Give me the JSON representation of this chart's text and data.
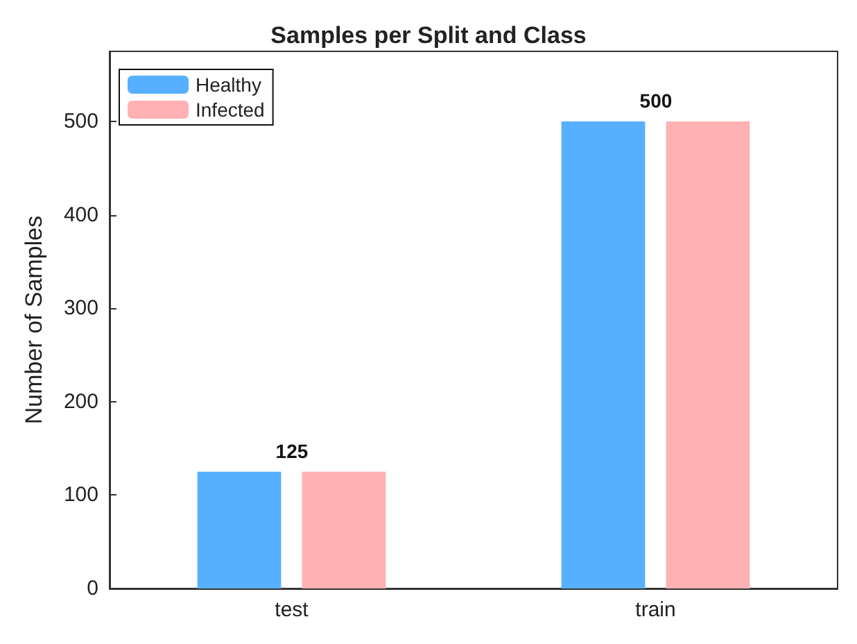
{
  "chart_data": {
    "type": "bar",
    "title": "Samples per Split and Class",
    "ylabel": "Number of Samples",
    "categories": [
      "test",
      "train"
    ],
    "series": [
      {
        "name": "Healthy",
        "color": "#56b0ff",
        "values": [
          125,
          500
        ],
        "value_labels": [
          "125",
          "500"
        ]
      },
      {
        "name": "Infected",
        "color": "#ffb1b3",
        "values": [
          125,
          500
        ]
      }
    ],
    "ylim": [
      0,
      575
    ],
    "yticks": [
      0,
      100,
      200,
      300,
      400,
      500
    ],
    "grid": false,
    "legend": "top left"
  }
}
